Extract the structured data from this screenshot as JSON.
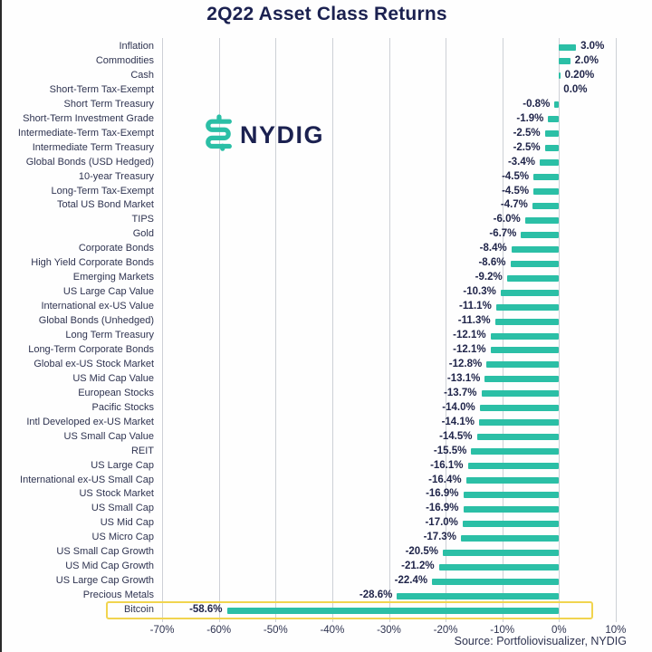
{
  "title": "2Q22 Asset Class Returns",
  "logo": {
    "text": "NYDIG"
  },
  "source": "Source: Portfoliovisualizer, NYDIG",
  "colors": {
    "bar": "#2bbfa6",
    "highlight_box": "#f1d44f",
    "title_navy": "#1b2150",
    "gridline": "#cdd0d6"
  },
  "chart_data": {
    "type": "bar",
    "orientation": "horizontal",
    "title": "2Q22 Asset Class Returns",
    "xlabel": "",
    "ylabel": "",
    "xlim": [
      -75,
      11
    ],
    "grid": true,
    "x_tick_values": [
      -70,
      -60,
      -50,
      -40,
      -30,
      -20,
      -10,
      0,
      10
    ],
    "x_tick_labels": [
      "-70%",
      "-60%",
      "-50%",
      "-40%",
      "-30%",
      "-20%",
      "-10%",
      "0%",
      "10%"
    ],
    "categories": [
      "Inflation",
      "Commodities",
      "Cash",
      "Short-Term Tax-Exempt",
      "Short Term Treasury",
      "Short-Term Investment Grade",
      "Intermediate-Term Tax-Exempt",
      "Intermediate Term Treasury",
      "Global Bonds (USD Hedged)",
      "10-year Treasury",
      "Long-Term Tax-Exempt",
      "Total US Bond Market",
      "TIPS",
      "Gold",
      "Corporate Bonds",
      "High Yield Corporate Bonds",
      "Emerging Markets",
      "US Large Cap Value",
      "International ex-US Value",
      "Global Bonds (Unhedged)",
      "Long Term Treasury",
      "Long-Term Corporate Bonds",
      "Global ex-US Stock Market",
      "US Mid Cap Value",
      "European Stocks",
      "Pacific Stocks",
      "Intl Developed ex-US Market",
      "US Small Cap Value",
      "REIT",
      "US Large Cap",
      "International ex-US Small Cap",
      "US Stock Market",
      "US Small Cap",
      "US Mid Cap",
      "US Micro Cap",
      "US Small Cap Growth",
      "US Mid Cap Growth",
      "US Large Cap Growth",
      "Precious Metals",
      "Bitcoin"
    ],
    "values": [
      3.0,
      2.0,
      0.2,
      0.0,
      -0.8,
      -1.9,
      -2.5,
      -2.5,
      -3.4,
      -4.5,
      -4.5,
      -4.7,
      -6.0,
      -6.7,
      -8.4,
      -8.6,
      -9.2,
      -10.3,
      -11.1,
      -11.3,
      -12.1,
      -12.1,
      -12.8,
      -13.1,
      -13.7,
      -14.0,
      -14.1,
      -14.5,
      -15.5,
      -16.1,
      -16.4,
      -16.9,
      -16.9,
      -17.0,
      -17.3,
      -20.5,
      -21.2,
      -22.4,
      -28.6,
      -58.6
    ],
    "value_labels": [
      "3.0%",
      "2.0%",
      "0.20%",
      "0.0%",
      "-0.8%",
      "-1.9%",
      "-2.5%",
      "-2.5%",
      "-3.4%",
      "-4.5%",
      "-4.5%",
      "-4.7%",
      "-6.0%",
      "-6.7%",
      "-8.4%",
      "-8.6%",
      "-9.2%",
      "-10.3%",
      "-11.1%",
      "-11.3%",
      "-12.1%",
      "-12.1%",
      "-12.8%",
      "-13.1%",
      "-13.7%",
      "-14.0%",
      "-14.1%",
      "-14.5%",
      "-15.5%",
      "-16.1%",
      "-16.4%",
      "-16.9%",
      "-16.9%",
      "-17.0%",
      "-17.3%",
      "-20.5%",
      "-21.2%",
      "-22.4%",
      "-28.6%",
      "-58.6%"
    ],
    "highlighted_category": "Bitcoin",
    "legend": false
  }
}
